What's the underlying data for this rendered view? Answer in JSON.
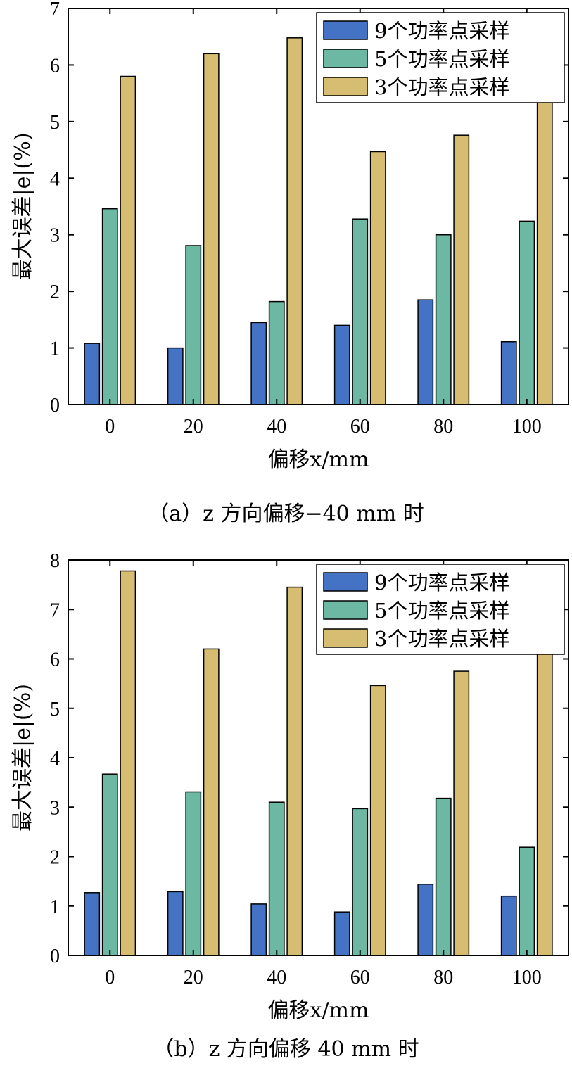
{
  "chart_data": [
    {
      "type": "bar",
      "caption": "（a）z 方向偏移−40 mm 时",
      "xlabel": "偏移x/mm",
      "ylabel": "最大误差|e|(%)",
      "categories": [
        "0",
        "20",
        "40",
        "60",
        "80",
        "100"
      ],
      "ylim": [
        0,
        7
      ],
      "yticks": [
        0,
        1,
        2,
        3,
        4,
        5,
        6,
        7
      ],
      "legend_position": "top-right",
      "series": [
        {
          "name": "9个功率点采样",
          "color": "#4472C4",
          "values": [
            1.08,
            1.0,
            1.45,
            1.4,
            1.85,
            1.11
          ]
        },
        {
          "name": "5个功率点采样",
          "color": "#6DB8A2",
          "values": [
            3.46,
            2.81,
            1.82,
            3.28,
            3.0,
            3.24
          ]
        },
        {
          "name": "3个功率点采样",
          "color": "#D6BD72",
          "values": [
            5.8,
            6.2,
            6.48,
            4.47,
            4.76,
            6.2
          ]
        }
      ]
    },
    {
      "type": "bar",
      "caption": "（b）z 方向偏移 40 mm 时",
      "xlabel": "偏移x/mm",
      "ylabel": "最大误差|e|(%)",
      "categories": [
        "0",
        "20",
        "40",
        "60",
        "80",
        "100"
      ],
      "ylim": [
        0,
        8
      ],
      "yticks": [
        0,
        1,
        2,
        3,
        4,
        5,
        6,
        7,
        8
      ],
      "legend_position": "top-right",
      "series": [
        {
          "name": "9个功率点采样",
          "color": "#4472C4",
          "values": [
            1.27,
            1.29,
            1.04,
            0.88,
            1.44,
            1.2
          ]
        },
        {
          "name": "5个功率点采样",
          "color": "#6DB8A2",
          "values": [
            3.67,
            3.31,
            3.1,
            2.97,
            3.18,
            2.19
          ]
        },
        {
          "name": "3个功率点采样",
          "color": "#D6BD72",
          "values": [
            7.78,
            6.2,
            7.45,
            5.46,
            5.75,
            7.18
          ]
        }
      ]
    }
  ]
}
